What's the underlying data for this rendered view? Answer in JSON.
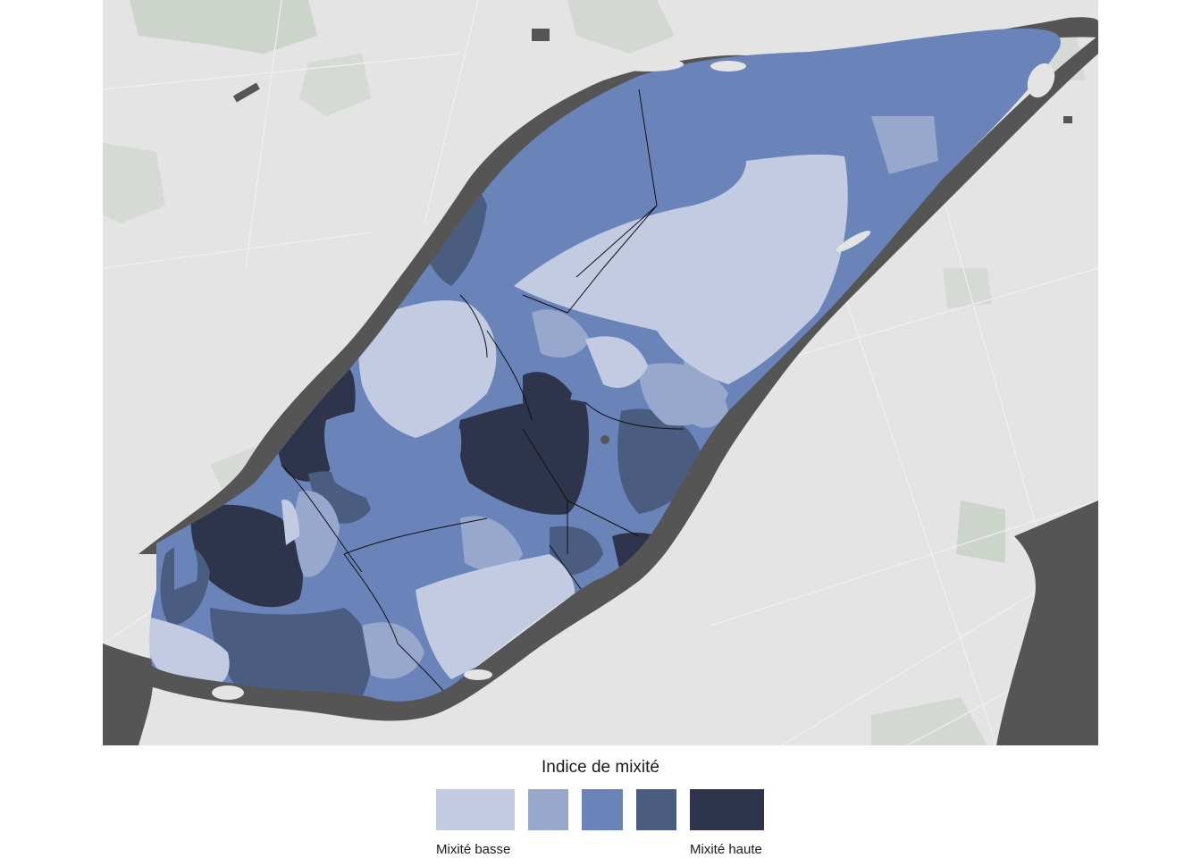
{
  "legend": {
    "title": "Indice de mixité",
    "low_label": "Mixité basse",
    "high_label": "Mixité haute",
    "classes": [
      {
        "color": "#c3cbe2"
      },
      {
        "color": "#98a8cc"
      },
      {
        "color": "#6a83b8"
      },
      {
        "color": "#4b5c81"
      },
      {
        "color": "#2d344c"
      }
    ]
  },
  "basemap": {
    "land": "#e4e4e4",
    "water": "#555555",
    "park": "#c9d2c8",
    "district_border": "#111111"
  }
}
